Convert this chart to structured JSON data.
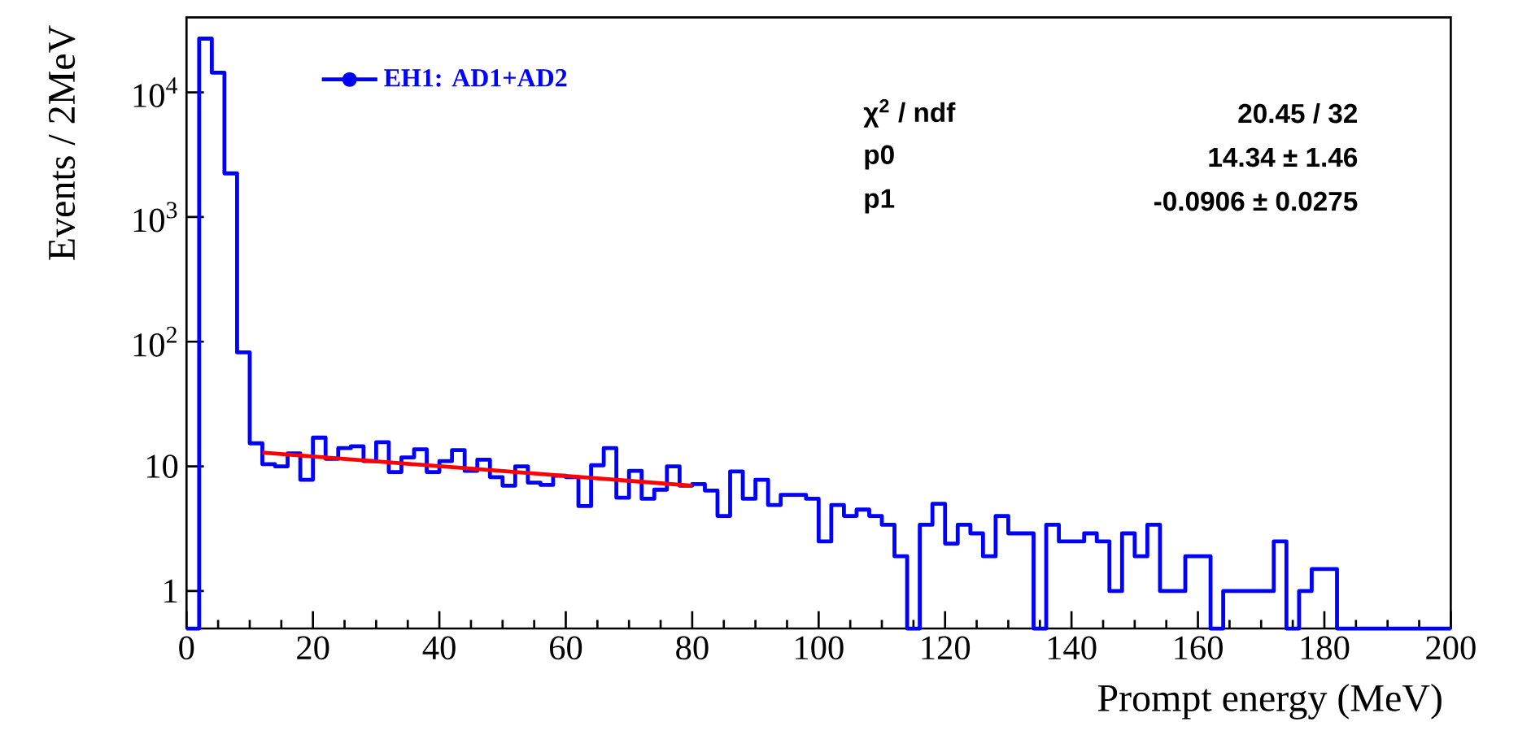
{
  "chart_data": {
    "type": "histogram",
    "xlabel": "Prompt energy (MeV)",
    "ylabel": "Events / 2MeV",
    "bins": [
      0,
      2,
      4,
      6,
      8,
      10,
      12,
      14,
      16,
      18,
      20,
      22,
      24,
      26,
      28,
      30,
      32,
      34,
      36,
      38,
      40,
      42,
      44,
      46,
      48,
      50,
      52,
      54,
      56,
      58,
      60,
      62,
      64,
      66,
      68,
      70,
      72,
      74,
      76,
      78,
      80,
      82,
      84,
      86,
      88,
      90,
      92,
      94,
      96,
      98,
      100,
      102,
      104,
      106,
      108,
      110,
      112,
      114,
      116,
      118,
      120,
      122,
      124,
      126,
      128,
      130,
      132,
      134,
      136,
      138,
      140,
      142,
      144,
      146,
      148,
      150,
      152,
      154,
      156,
      158,
      160,
      162,
      164,
      166,
      168,
      170,
      172,
      174,
      176,
      178,
      180,
      182,
      184,
      186,
      188,
      190,
      192,
      194,
      196,
      198,
      200
    ],
    "series": [
      {
        "name": "EH1: AD1+AD2",
        "color": "#0000ff",
        "values": [
          null,
          27000,
          14400,
          2240,
          82,
          15.3,
          10.4,
          10,
          12.7,
          7.8,
          17,
          11.5,
          14,
          14.5,
          11,
          15.6,
          9,
          11.8,
          13.7,
          9,
          11,
          13.5,
          9.2,
          11.3,
          8.2,
          7,
          10,
          7.4,
          7.1,
          8.4,
          8.2,
          4.8,
          10.2,
          14,
          5.6,
          9.2,
          5.5,
          6.5,
          10,
          7,
          7.2,
          6.4,
          4.0,
          9.1,
          5.5,
          7.8,
          4.9,
          5.9,
          5.9,
          5.5,
          2.5,
          4.9,
          4.0,
          4.5,
          4.0,
          3.4,
          1.9,
          null,
          3.4,
          5.0,
          2.4,
          3.4,
          2.9,
          1.9,
          4.0,
          2.9,
          2.9,
          null,
          3.4,
          2.5,
          2.5,
          2.9,
          2.5,
          1.0,
          2.9,
          1.9,
          3.4,
          1.0,
          1.0,
          1.9,
          1.9,
          null,
          1.0,
          1.0,
          1.0,
          1.0,
          2.5,
          null,
          1.0,
          1.5,
          1.5,
          null,
          null,
          null,
          null,
          null,
          null,
          null,
          null,
          null
        ]
      },
      {
        "type": "line",
        "color": "#ff0000",
        "x": [
          12,
          80
        ],
        "values": [
          12.9,
          7.0
        ]
      }
    ],
    "xlim": [
      0,
      200
    ],
    "xticks": [
      0,
      20,
      40,
      60,
      80,
      100,
      120,
      140,
      160,
      180,
      200
    ],
    "ylim": [
      0.5,
      40000
    ],
    "log": true,
    "yticks": [
      1,
      10,
      {
        "value": 100,
        "label": "10$^{2}$"
      },
      {
        "value": 1000,
        "label": "10$^{3}$"
      },
      {
        "value": 10000,
        "label": "10$^{4}$"
      }
    ],
    "legend": "top left",
    "annotations": [
      "χ$^{2}$ / ndf",
      "20.45 / 32",
      "p0",
      "14.34 ± 1.46",
      "p1",
      "-0.0906 ± 0.0275"
    ]
  }
}
